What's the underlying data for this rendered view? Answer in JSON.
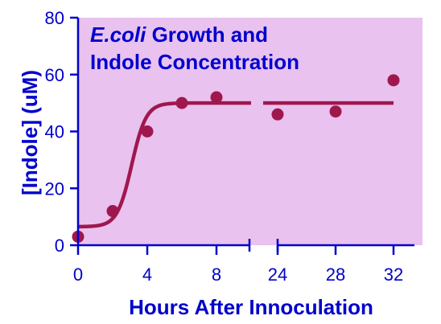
{
  "chart_data": {
    "type": "scatter",
    "title_italic": "E.coli",
    "title_rest": " Growth and",
    "title_line2": "Indole Concentration",
    "xlabel": "Hours After Innoculation",
    "ylabel": "[Indole] (uM)",
    "ylim": [
      0,
      80
    ],
    "yticks": [
      "0",
      "20",
      "40",
      "60",
      "80"
    ],
    "xticks": [
      "0",
      "4",
      "8",
      "24",
      "28",
      "32"
    ],
    "x_axis_break": true,
    "x_segments": [
      [
        0,
        10
      ],
      [
        23,
        34
      ]
    ],
    "grid": false,
    "colors": {
      "plot_bg": "#e9c2ef",
      "series": "#a0174e",
      "text": "#0000cc",
      "axis": "#0000cc"
    },
    "points": [
      {
        "x": 0,
        "y": 3
      },
      {
        "x": 2,
        "y": 12
      },
      {
        "x": 4,
        "y": 40
      },
      {
        "x": 6,
        "y": 50
      },
      {
        "x": 8,
        "y": 52
      },
      {
        "x": 24,
        "y": 46
      },
      {
        "x": 28,
        "y": 47
      },
      {
        "x": 32,
        "y": 58
      }
    ],
    "fit_curve": {
      "model": "sigmoid",
      "bottom": 6.5,
      "top": 50,
      "midpoint": 3.1,
      "rate": 2.4,
      "segments": [
        [
          0,
          10
        ],
        [
          23,
          32
        ]
      ]
    }
  }
}
